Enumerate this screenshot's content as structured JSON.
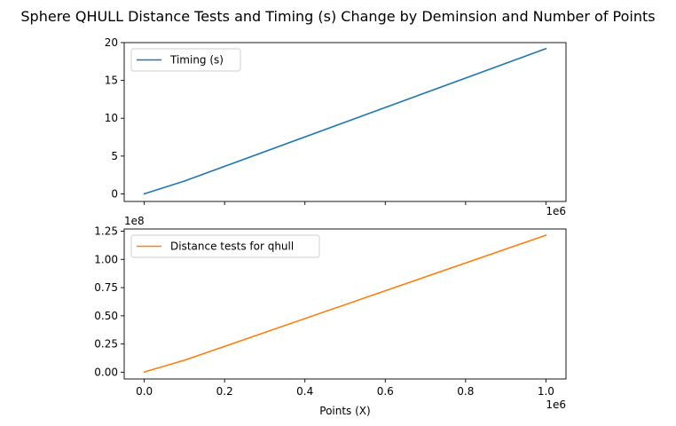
{
  "chart_data": [
    {
      "type": "line",
      "title": "Sphere QHULL Distance Tests and Timing (s) Change by Deminsion and Number of Points",
      "xlabel": "",
      "ylabel": "",
      "x_offset_label": "1e6",
      "xlim": [
        -50000,
        1050000
      ],
      "ylim": [
        -1,
        20
      ],
      "x_ticks": [
        0,
        200000,
        400000,
        600000,
        800000,
        1000000
      ],
      "x_tick_labels_shown": false,
      "y_ticks": [
        0,
        5,
        10,
        15,
        20
      ],
      "y_tick_labels": [
        "0",
        "5",
        "10",
        "15",
        "20"
      ],
      "legend_position": "upper-left",
      "grid": false,
      "series": [
        {
          "name": "Timing (s)",
          "color": "#1f77b4",
          "x": [
            100,
            100000,
            1000000
          ],
          "y": [
            0.01,
            1.7,
            19.2
          ]
        }
      ]
    },
    {
      "type": "line",
      "xlabel": "Points (X)",
      "ylabel": "",
      "x_offset_label": "1e6",
      "y_offset_label": "1e8",
      "xlim": [
        -50000,
        1050000
      ],
      "ylim": [
        -6000000,
        127000000
      ],
      "x_ticks": [
        0,
        200000,
        400000,
        600000,
        800000,
        1000000
      ],
      "x_tick_labels": [
        "0.0",
        "0.2",
        "0.4",
        "0.6",
        "0.8",
        "1.0"
      ],
      "y_ticks": [
        0,
        25000000,
        50000000,
        75000000,
        100000000,
        125000000
      ],
      "y_tick_labels": [
        "0.00",
        "0.25",
        "0.50",
        "0.75",
        "1.00",
        "1.25"
      ],
      "legend_position": "upper-left",
      "grid": false,
      "series": [
        {
          "name": "Distance tests for qhull",
          "color": "#ff7f0e",
          "x": [
            100,
            100000,
            1000000
          ],
          "y": [
            200000,
            10600000,
            121500000
          ]
        }
      ]
    }
  ]
}
